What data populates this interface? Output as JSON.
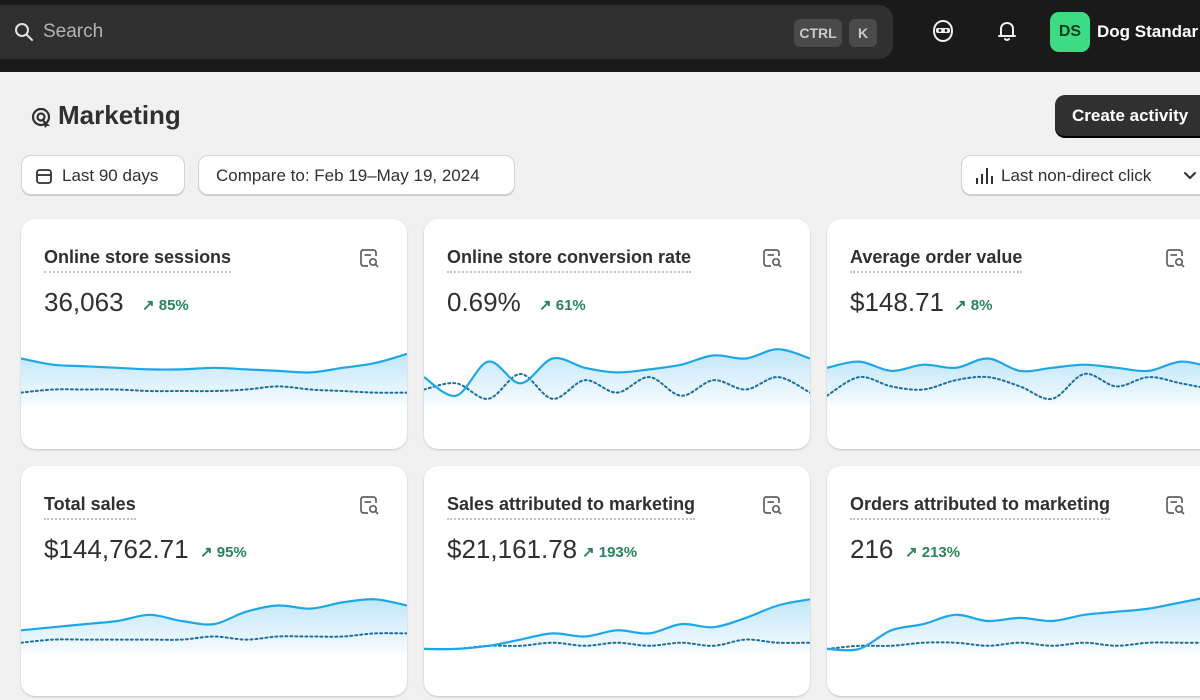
{
  "topbar": {
    "search_placeholder": "Search",
    "shortcut_ctrl": "CTRL",
    "shortcut_k": "K",
    "avatar_initials": "DS",
    "store_name": "Dog Standar",
    "avatar_color": "#3ddc84"
  },
  "header": {
    "title": "Marketing",
    "create_button": "Create activity"
  },
  "filters": {
    "date_range": "Last 90 days",
    "compare": "Compare to: Feb 19–May 19, 2024",
    "attribution": "Last non-direct click"
  },
  "colors": {
    "primary_line": "#1ea7e8",
    "positive_change": "#29845a"
  },
  "metrics": [
    {
      "title": "Online store sessions",
      "value": "36,063",
      "change": "85%"
    },
    {
      "title": "Online store conversion rate",
      "value": "0.69%",
      "change": "61%"
    },
    {
      "title": "Average order value",
      "value": "$148.71",
      "change": "8%"
    },
    {
      "title": "Total sales",
      "value": "$144,762.71",
      "change": "95%"
    },
    {
      "title": "Sales attributed to marketing",
      "value": "$21,161.78",
      "change": "193%"
    },
    {
      "title": "Orders attributed to marketing",
      "value": "216",
      "change": "213%"
    }
  ],
  "chart_data": [
    {
      "type": "area",
      "series": [
        {
          "values": [
            30,
            26,
            25,
            24,
            23,
            23,
            24,
            23,
            22,
            21,
            24,
            27,
            33
          ]
        },
        {
          "values": [
            8,
            10,
            10,
            10,
            9,
            9,
            9,
            10,
            12,
            10,
            9,
            8,
            8
          ]
        }
      ]
    },
    {
      "type": "area",
      "series": [
        {
          "values": [
            18,
            6,
            28,
            14,
            30,
            24,
            21,
            23,
            26,
            32,
            30,
            36,
            30
          ]
        },
        {
          "values": [
            10,
            14,
            4,
            20,
            4,
            16,
            8,
            18,
            6,
            16,
            10,
            18,
            8
          ]
        }
      ]
    },
    {
      "type": "area",
      "series": [
        {
          "values": [
            24,
            28,
            22,
            26,
            24,
            30,
            22,
            24,
            26,
            24,
            22,
            28,
            24
          ]
        },
        {
          "values": [
            6,
            18,
            12,
            10,
            16,
            18,
            12,
            4,
            20,
            12,
            18,
            14,
            10
          ]
        }
      ]
    },
    {
      "type": "area",
      "series": [
        {
          "values": [
            14,
            16,
            18,
            20,
            24,
            20,
            18,
            26,
            30,
            28,
            32,
            34,
            30
          ]
        },
        {
          "values": [
            6,
            8,
            8,
            8,
            8,
            8,
            10,
            8,
            10,
            10,
            10,
            12,
            12
          ]
        }
      ]
    },
    {
      "type": "area",
      "series": [
        {
          "values": [
            2,
            2,
            4,
            8,
            12,
            10,
            14,
            12,
            18,
            16,
            22,
            30,
            34
          ]
        },
        {
          "values": [
            2,
            2,
            4,
            4,
            6,
            4,
            6,
            4,
            6,
            4,
            8,
            6,
            6
          ]
        }
      ]
    },
    {
      "type": "area",
      "series": [
        {
          "values": [
            2,
            2,
            14,
            18,
            24,
            20,
            22,
            20,
            24,
            26,
            28,
            32,
            36
          ]
        },
        {
          "values": [
            2,
            4,
            4,
            6,
            6,
            4,
            6,
            4,
            6,
            4,
            6,
            6,
            6
          ]
        }
      ]
    }
  ]
}
